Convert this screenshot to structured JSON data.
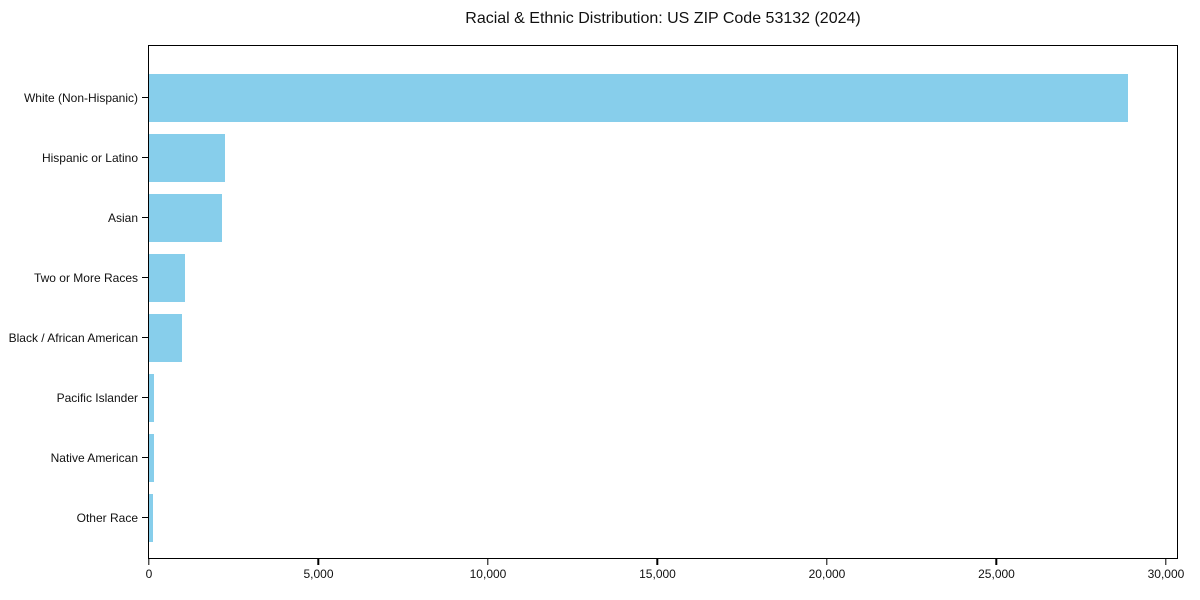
{
  "chart_data": {
    "type": "bar",
    "orientation": "horizontal",
    "title": "Racial & Ethnic Distribution: US ZIP Code 53132 (2024)",
    "categories": [
      "White (Non-Hispanic)",
      "Hispanic or Latino",
      "Asian",
      "Two or More Races",
      "Black / African American",
      "Pacific Islander",
      "Native American",
      "Other Race"
    ],
    "values": [
      28880,
      2240,
      2150,
      1060,
      970,
      145,
      135,
      125
    ],
    "xlabel": "",
    "ylabel": "",
    "xticks": [
      0,
      5000,
      10000,
      15000,
      20000,
      25000,
      30000
    ],
    "xtick_labels": [
      "0",
      "5,000",
      "10,000",
      "15,000",
      "20,000",
      "25,000",
      "30,000"
    ],
    "xlim": [
      0,
      30325
    ],
    "grid": false,
    "legend": null,
    "bar_color": "#87CEEB",
    "axis_color": "#000000",
    "background_color": "#ffffff"
  }
}
